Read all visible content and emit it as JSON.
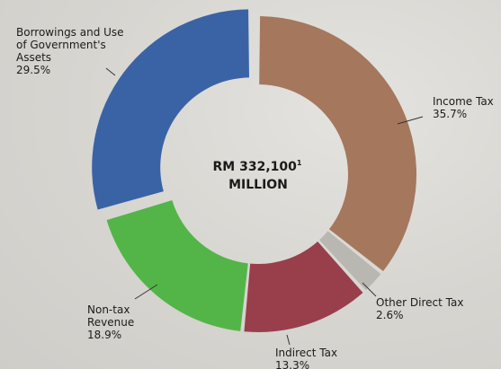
{
  "chart_data": {
    "type": "pie",
    "center": {
      "amount": "RM 332,100",
      "footnote": "1",
      "unit": "MILLION"
    },
    "slices": [
      {
        "name_lines": [
          "Income Tax"
        ],
        "pct_label": "35.7%",
        "value": 35.7,
        "color": "#a5775d"
      },
      {
        "name_lines": [
          "Other Direct Tax"
        ],
        "pct_label": "2.6%",
        "value": 2.6,
        "color": "#b8b7b2"
      },
      {
        "name_lines": [
          "Indirect Tax"
        ],
        "pct_label": "13.3%",
        "value": 13.3,
        "color": "#983f4b"
      },
      {
        "name_lines": [
          "Non-tax",
          "Revenue"
        ],
        "pct_label": "18.9%",
        "value": 18.9,
        "color": "#53b548"
      },
      {
        "name_lines": [
          "Borrowings and Use",
          "of Government's",
          "Assets"
        ],
        "pct_label": "29.5%",
        "value": 29.5,
        "color": "#3a63a5",
        "exploded": true
      }
    ]
  }
}
